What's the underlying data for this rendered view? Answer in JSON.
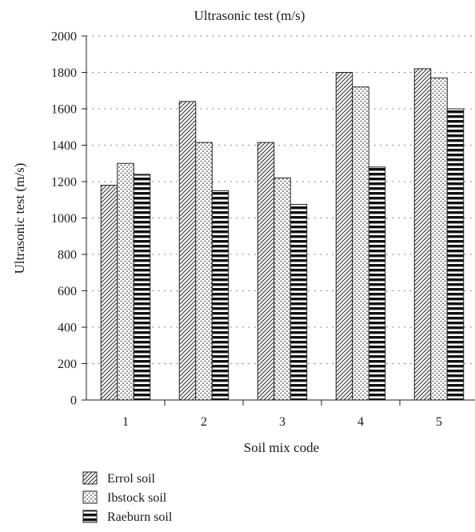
{
  "chart_data": {
    "type": "bar",
    "title": "Ultrasonic test (m/s)",
    "xlabel": "Soil mix code",
    "ylabel": "Ultrasonic test (m/s)",
    "categories": [
      "1",
      "2",
      "3",
      "4",
      "5"
    ],
    "ylim": [
      0,
      2000
    ],
    "yticks": [
      0,
      200,
      400,
      600,
      800,
      1000,
      1200,
      1400,
      1600,
      1800,
      2000
    ],
    "grid": "horizontal dotted",
    "legend_position": "bottom-left",
    "series": [
      {
        "name": "Errol soil",
        "pattern": "diagonal-hatch",
        "values": [
          1180,
          1640,
          1415,
          1800,
          1820
        ]
      },
      {
        "name": "Ibstock soil",
        "pattern": "dots",
        "values": [
          1300,
          1415,
          1220,
          1720,
          1770
        ]
      },
      {
        "name": "Raeburn soil",
        "pattern": "horizontal-stripes",
        "values": [
          1240,
          1150,
          1075,
          1280,
          1600
        ]
      }
    ]
  }
}
